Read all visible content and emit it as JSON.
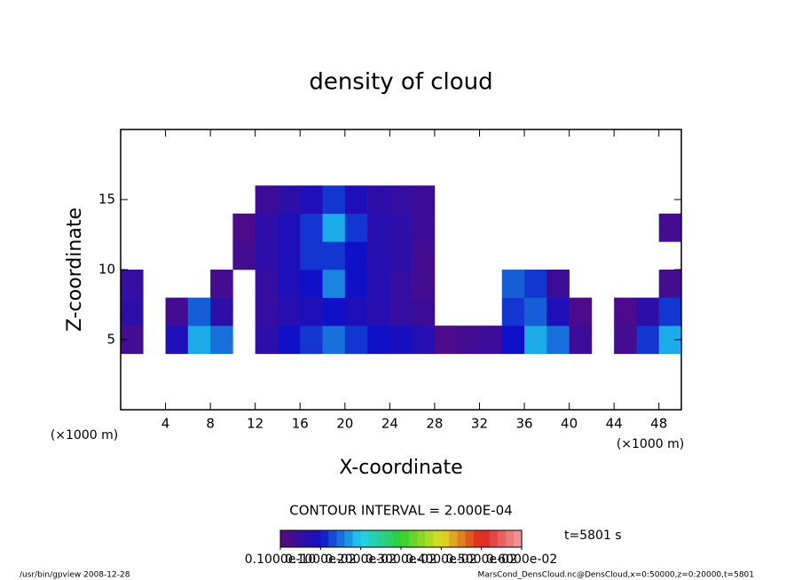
{
  "chart_data": {
    "type": "heatmap",
    "title": "density of cloud",
    "x_label": "X-coordinate",
    "y_label": "Z-coordinate",
    "x_unit": "(×1000 m)",
    "y_unit": "(×1000 m)",
    "xlim": [
      0,
      50
    ],
    "xticks": [
      4,
      8,
      12,
      16,
      20,
      24,
      28,
      32,
      36,
      40,
      44,
      48
    ],
    "ylim": [
      0,
      20
    ],
    "yticks": [
      5,
      10,
      15
    ],
    "x": [
      1,
      3,
      5,
      7,
      9,
      11,
      13,
      15,
      17,
      19,
      21,
      23,
      25,
      27,
      29,
      31,
      33,
      35,
      37,
      39,
      41,
      43,
      45,
      47,
      49
    ],
    "y": [
      5,
      7,
      9,
      11,
      13,
      15
    ],
    "values": [
      [
        0.0003,
        0,
        0.0008,
        0.0018,
        0.0015,
        0,
        0.0006,
        0.001,
        0.0012,
        0.0015,
        0.0012,
        0.001,
        0.0009,
        0.0007,
        0.0002,
        0.0003,
        0.0004,
        0.001,
        0.0018,
        0.0015,
        0.0004,
        0,
        0.0003,
        0.0012,
        0.0018
      ],
      [
        0.0006,
        0,
        0.0003,
        0.0014,
        0.0006,
        0,
        0.0005,
        0.0007,
        0.0008,
        0.001,
        0.0008,
        0.0007,
        0.0005,
        0.0004,
        0,
        0,
        0,
        0.0012,
        0.0014,
        0.0008,
        0.0002,
        0,
        0.0002,
        0.0006,
        0.0012
      ],
      [
        0.0005,
        0,
        0,
        0,
        0.0003,
        0,
        0.0005,
        0.0008,
        0.001,
        0.0016,
        0.001,
        0.0007,
        0.0005,
        0.0003,
        0,
        0,
        0,
        0.0014,
        0.0012,
        0.0004,
        0,
        0,
        0,
        0,
        0.0003
      ],
      [
        0,
        0,
        0,
        0,
        0,
        0.0003,
        0.0006,
        0.0008,
        0.0012,
        0.0012,
        0.001,
        0.0007,
        0.0006,
        0.0003,
        0,
        0,
        0,
        0,
        0,
        0,
        0,
        0,
        0,
        0,
        0
      ],
      [
        0,
        0,
        0,
        0,
        0,
        0.0002,
        0.0006,
        0.0008,
        0.0012,
        0.0018,
        0.0012,
        0.0007,
        0.0006,
        0.0004,
        0,
        0,
        0,
        0,
        0,
        0,
        0,
        0,
        0,
        0,
        0.0003
      ],
      [
        0,
        0,
        0,
        0,
        0,
        0,
        0.0004,
        0.0006,
        0.0008,
        0.0012,
        0.0008,
        0.0006,
        0.0005,
        0.0004,
        0,
        0,
        0,
        0,
        0,
        0,
        0,
        0,
        0,
        0,
        0
      ]
    ],
    "clim": [
      0,
      0.006
    ],
    "cticks": [
      {
        "value": 1e-11,
        "label": "0.1000e-10"
      },
      {
        "value": 0.001,
        "label": "0.1000e-02"
      },
      {
        "value": 0.002,
        "label": "0.2000e-02"
      },
      {
        "value": 0.003,
        "label": "0.3000e-02"
      },
      {
        "value": 0.004,
        "label": "0.4000e-02"
      },
      {
        "value": 0.005,
        "label": "0.5000e-02"
      },
      {
        "value": 0.006,
        "label": "0.6000e-02"
      }
    ],
    "colormap": [
      "#5a0a7a",
      "#1010c8",
      "#20d0f0",
      "#30d030",
      "#e0e020",
      "#e02020",
      "#f0a0a0"
    ],
    "contour_interval": "CONTOUR INTERVAL = 2.000E-04",
    "time": "t=5801 s",
    "footer_left": "/usr/bin/gpview   2008-12-28",
    "footer_right": "MarsCond_DensCloud.nc@DensCloud,x=0:50000,z=0:20000,t=5801"
  }
}
